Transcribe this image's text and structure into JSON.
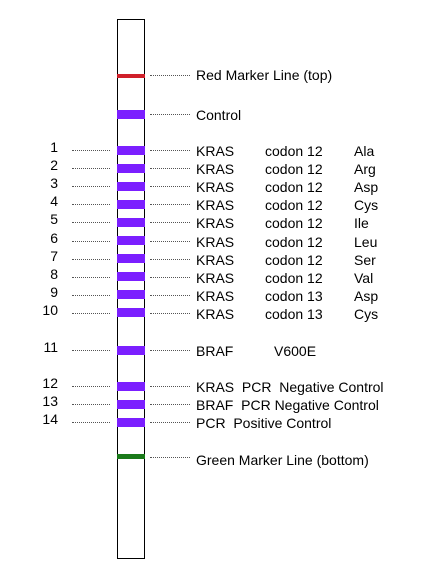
{
  "colors": {
    "strip_border": "#000000",
    "red_marker": "#d0202a",
    "green_marker": "#1a7a1a",
    "probe_band": "#7b1fff"
  },
  "markers": {
    "top": "Red Marker Line (top)",
    "control": "Control",
    "bottom": "Green Marker Line (bottom)"
  },
  "probes": [
    {
      "num": "1",
      "gene": "KRAS",
      "codon": "codon 12",
      "aa": "Ala"
    },
    {
      "num": "2",
      "gene": "KRAS",
      "codon": "codon 12",
      "aa": "Arg"
    },
    {
      "num": "3",
      "gene": "KRAS",
      "codon": "codon 12",
      "aa": "Asp"
    },
    {
      "num": "4",
      "gene": "KRAS",
      "codon": "codon 12",
      "aa": "Cys"
    },
    {
      "num": "5",
      "gene": "KRAS",
      "codon": "codon 12",
      "aa": "Ile"
    },
    {
      "num": "6",
      "gene": "KRAS",
      "codon": "codon 12",
      "aa": "Leu"
    },
    {
      "num": "7",
      "gene": "KRAS",
      "codon": "codon 12",
      "aa": "Ser"
    },
    {
      "num": "8",
      "gene": "KRAS",
      "codon": "codon 12",
      "aa": "Val"
    },
    {
      "num": "9",
      "gene": "KRAS",
      "codon": "codon 13",
      "aa": "Asp"
    },
    {
      "num": "10",
      "gene": "KRAS",
      "codon": "codon 13",
      "aa": "Cys"
    }
  ],
  "braf": {
    "num": "11",
    "gene": "BRAF",
    "variant": "V600E"
  },
  "pcr_controls": [
    {
      "num": "12",
      "label": "KRAS  PCR  Negative Control"
    },
    {
      "num": "13",
      "label": "BRAF  PCR Negative Control"
    },
    {
      "num": "14",
      "label": "PCR  Positive Control"
    }
  ]
}
